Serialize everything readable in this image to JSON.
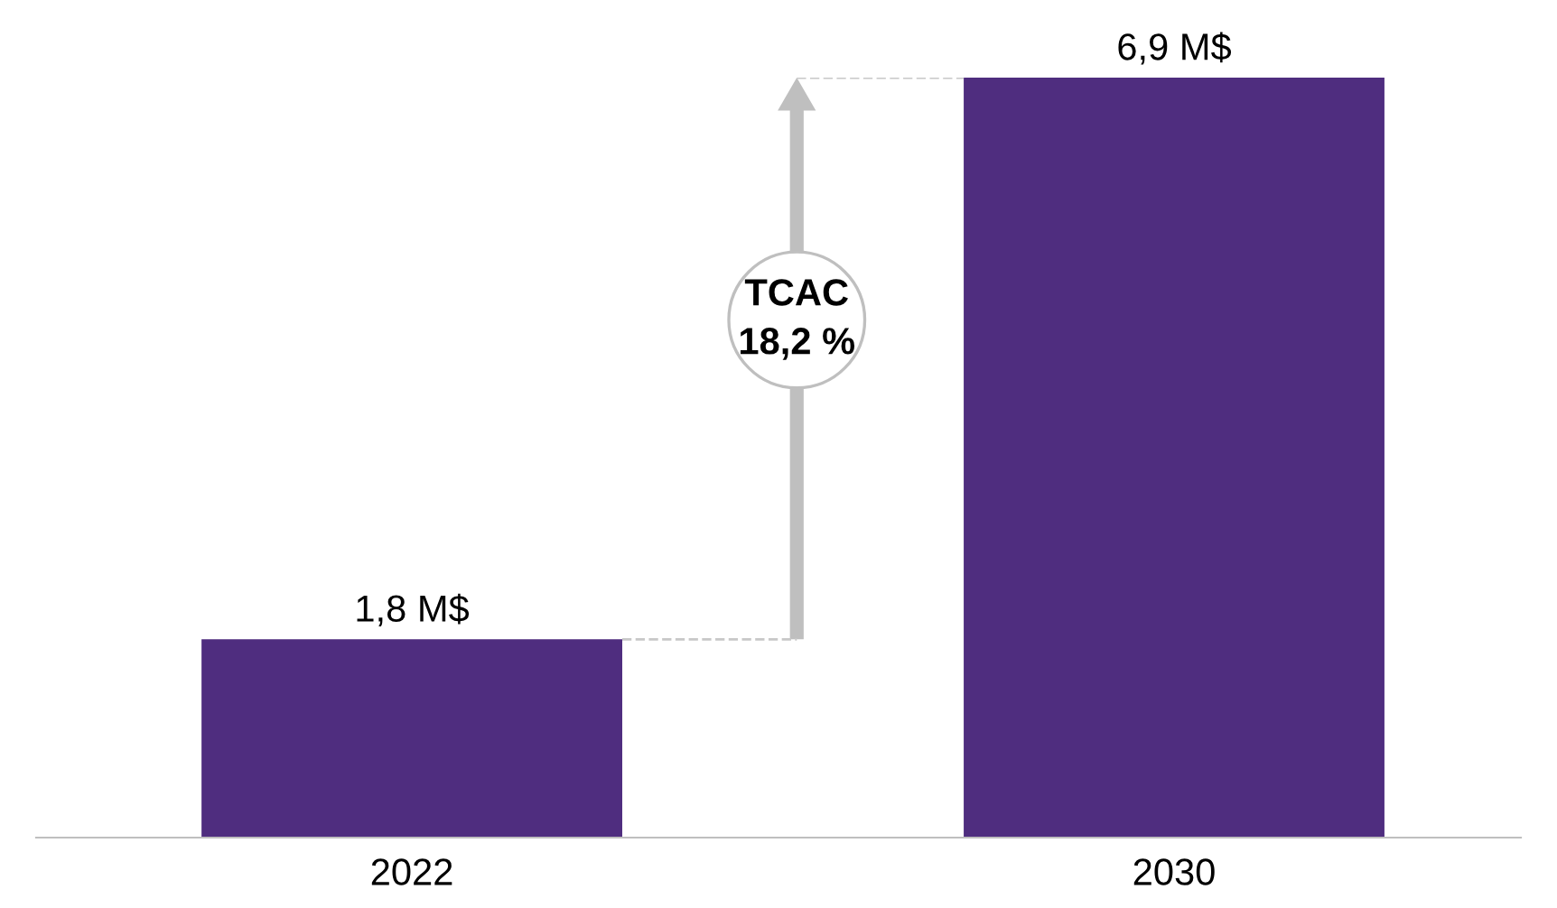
{
  "chart_data": {
    "type": "bar",
    "categories": [
      "2022",
      "2030"
    ],
    "values": [
      1.8,
      6.9
    ],
    "value_labels": [
      "1,8 M$",
      "6,9 M$"
    ],
    "color": "#4f2d7f",
    "annotations": [
      "TCAC\n18,2 %"
    ],
    "ref_lines": [
      {
        "axis": "y",
        "value": 1.8,
        "color": "#c8c8c8",
        "line_style": "dashed"
      },
      {
        "axis": "y",
        "value": 6.9,
        "color": "#c8c8c8",
        "line_style": "dashed"
      }
    ],
    "grid": false,
    "legend": false
  }
}
